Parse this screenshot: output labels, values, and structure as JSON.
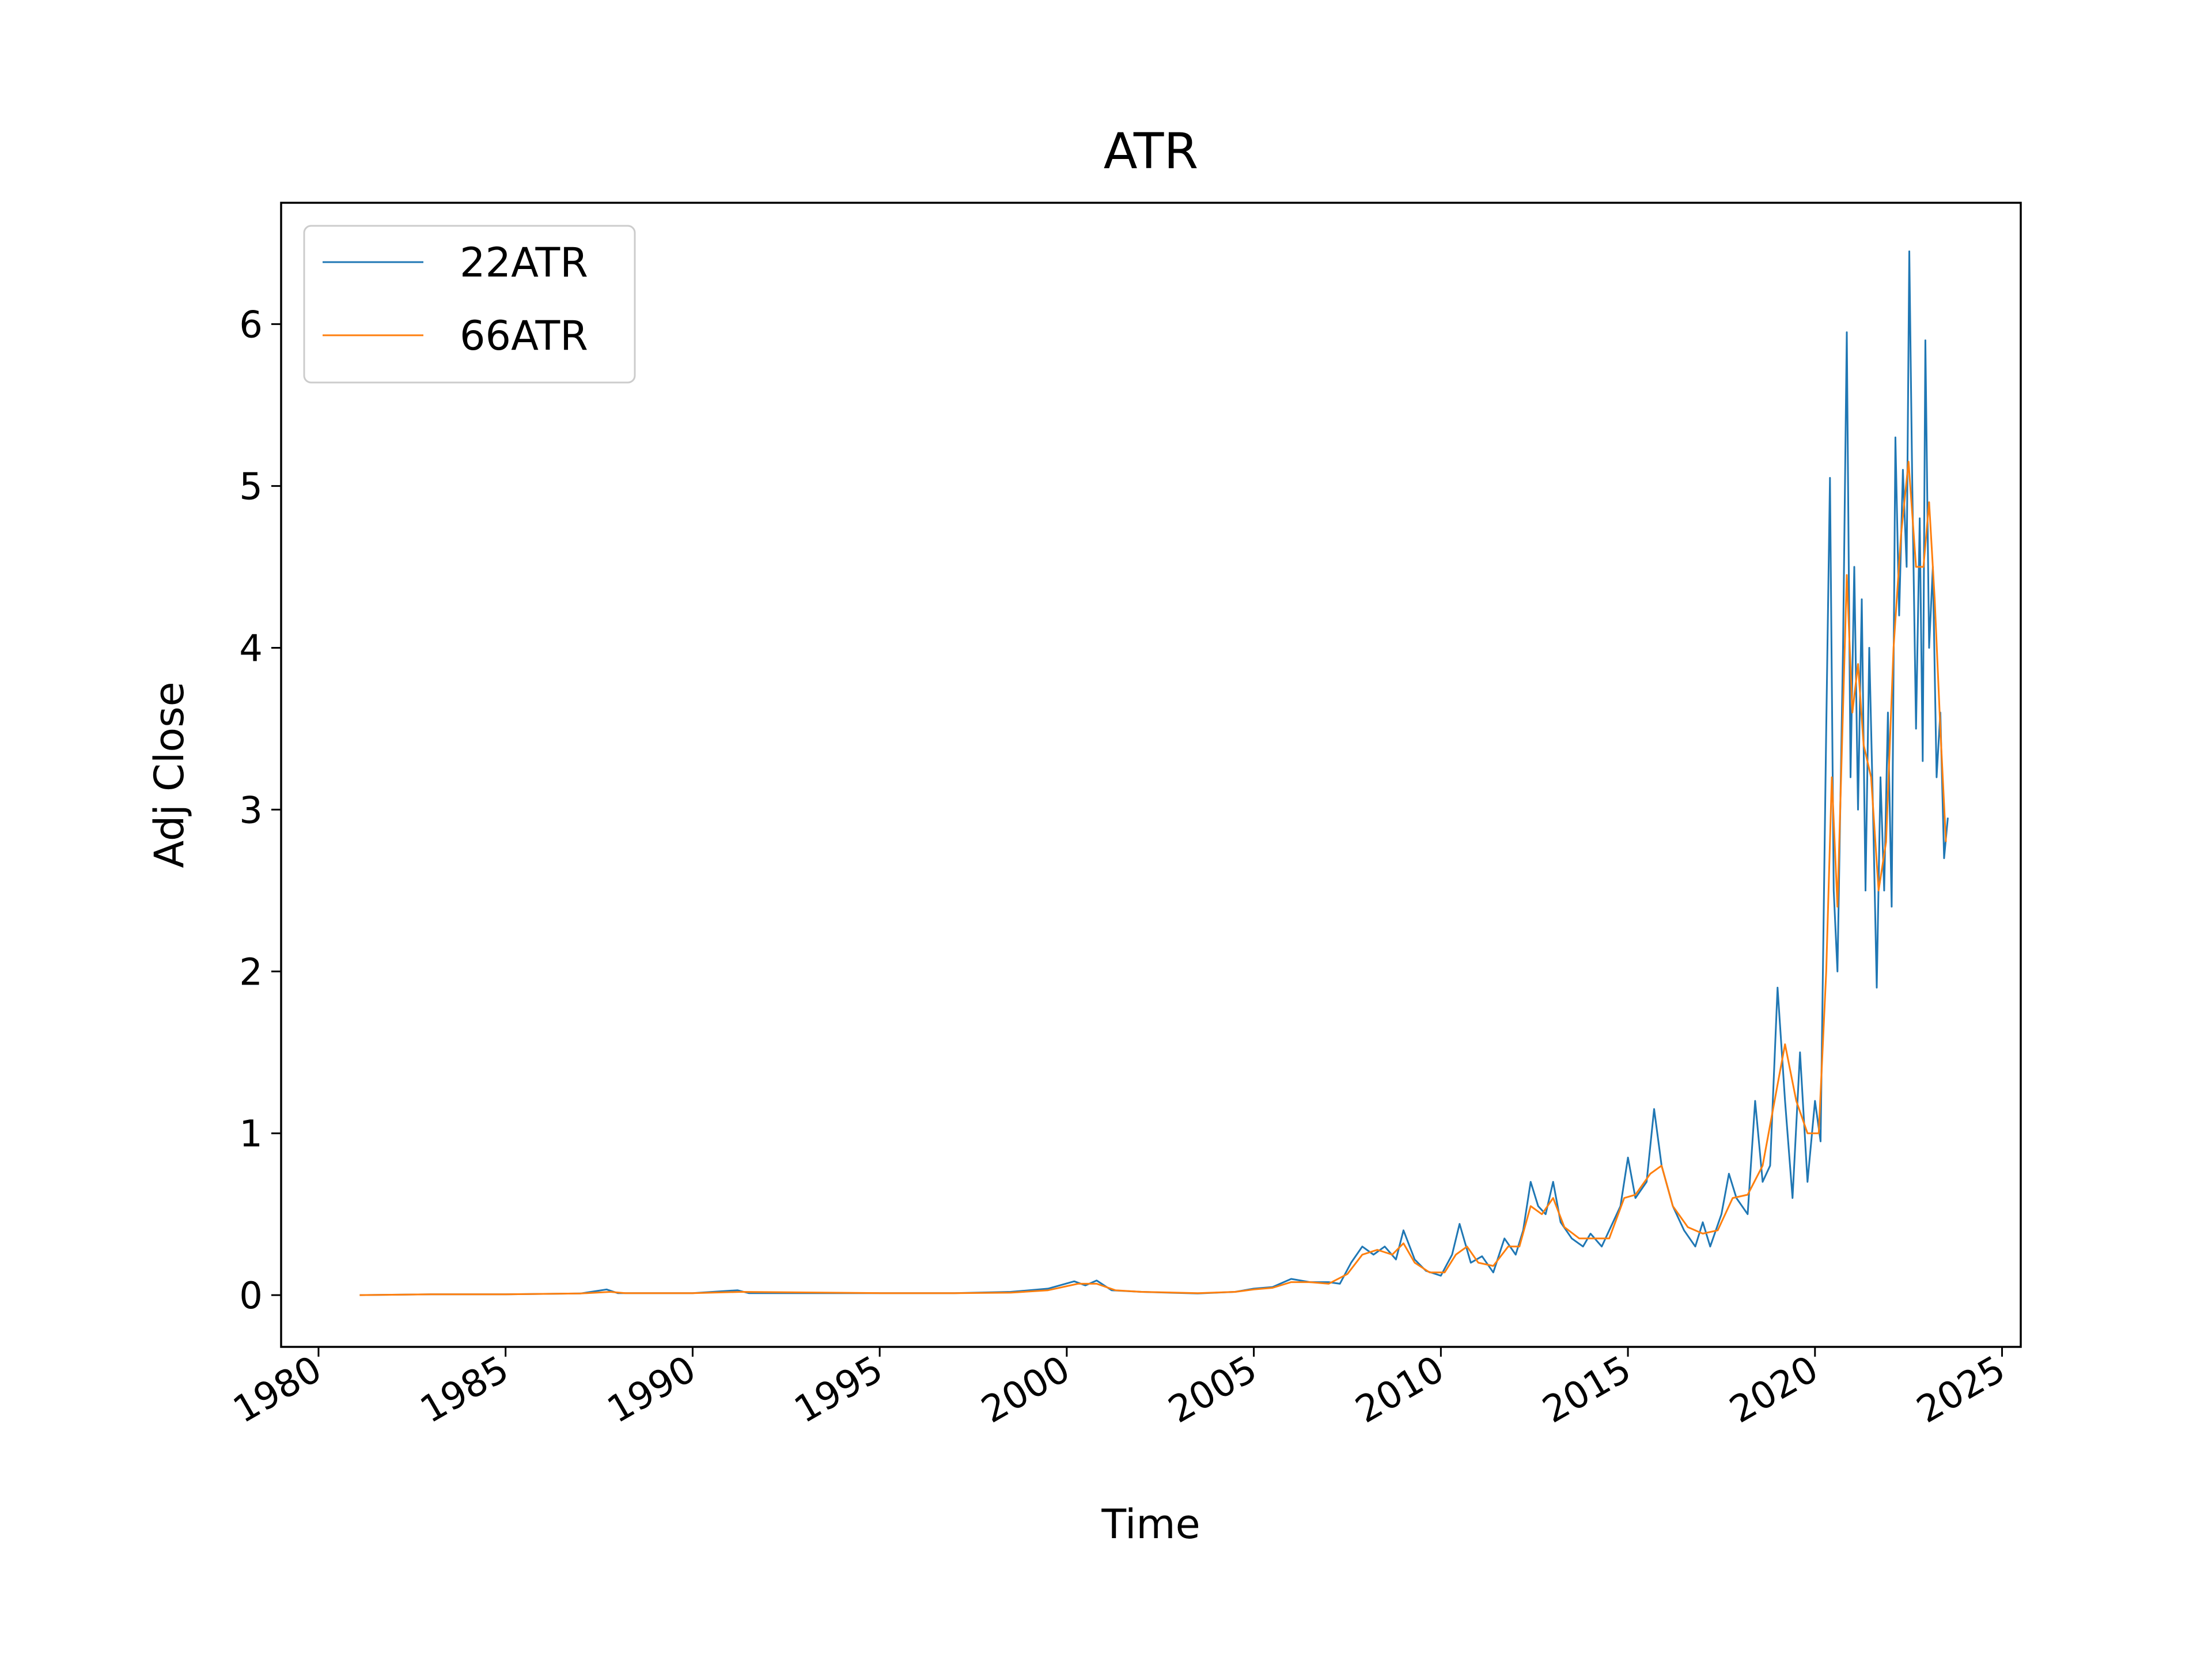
{
  "chart_data": {
    "type": "line",
    "title": "ATR",
    "xlabel": "Time",
    "ylabel": "Adj Close",
    "xlim": [
      1979.0,
      2025.5
    ],
    "ylim": [
      -0.32,
      6.75
    ],
    "x_ticks": [
      1980,
      1985,
      1990,
      1995,
      2000,
      2005,
      2010,
      2015,
      2020,
      2025
    ],
    "x_tick_labels": [
      "1980",
      "1985",
      "1990",
      "1995",
      "2000",
      "2005",
      "2010",
      "2015",
      "2020",
      "2025"
    ],
    "y_ticks": [
      0,
      1,
      2,
      3,
      4,
      5,
      6
    ],
    "y_tick_labels": [
      "0",
      "1",
      "2",
      "3",
      "4",
      "5",
      "6"
    ],
    "grid": false,
    "legend_position": "top-left",
    "series": [
      {
        "name": "22ATR",
        "color": "#1f77b4",
        "points": [
          [
            1981.1,
            0.0
          ],
          [
            1983.0,
            0.005
          ],
          [
            1985.0,
            0.005
          ],
          [
            1987.0,
            0.01
          ],
          [
            1987.7,
            0.035
          ],
          [
            1988.0,
            0.012
          ],
          [
            1990.0,
            0.012
          ],
          [
            1991.2,
            0.03
          ],
          [
            1991.5,
            0.012
          ],
          [
            1995.0,
            0.012
          ],
          [
            1997.0,
            0.012
          ],
          [
            1998.5,
            0.02
          ],
          [
            1999.5,
            0.04
          ],
          [
            2000.2,
            0.085
          ],
          [
            2000.5,
            0.06
          ],
          [
            2000.8,
            0.09
          ],
          [
            2001.2,
            0.03
          ],
          [
            2002.0,
            0.02
          ],
          [
            2003.5,
            0.01
          ],
          [
            2004.5,
            0.02
          ],
          [
            2005.0,
            0.04
          ],
          [
            2005.5,
            0.05
          ],
          [
            2006.0,
            0.1
          ],
          [
            2006.5,
            0.08
          ],
          [
            2007.0,
            0.08
          ],
          [
            2007.3,
            0.07
          ],
          [
            2007.6,
            0.2
          ],
          [
            2007.9,
            0.3
          ],
          [
            2008.2,
            0.25
          ],
          [
            2008.5,
            0.3
          ],
          [
            2008.8,
            0.22
          ],
          [
            2009.0,
            0.4
          ],
          [
            2009.3,
            0.22
          ],
          [
            2009.6,
            0.15
          ],
          [
            2010.0,
            0.12
          ],
          [
            2010.3,
            0.25
          ],
          [
            2010.5,
            0.44
          ],
          [
            2010.8,
            0.2
          ],
          [
            2011.1,
            0.24
          ],
          [
            2011.4,
            0.14
          ],
          [
            2011.7,
            0.35
          ],
          [
            2012.0,
            0.25
          ],
          [
            2012.2,
            0.4
          ],
          [
            2012.4,
            0.7
          ],
          [
            2012.6,
            0.55
          ],
          [
            2012.8,
            0.5
          ],
          [
            2013.0,
            0.7
          ],
          [
            2013.2,
            0.45
          ],
          [
            2013.5,
            0.35
          ],
          [
            2013.8,
            0.3
          ],
          [
            2014.0,
            0.38
          ],
          [
            2014.3,
            0.3
          ],
          [
            2014.6,
            0.45
          ],
          [
            2014.8,
            0.55
          ],
          [
            2015.0,
            0.85
          ],
          [
            2015.2,
            0.6
          ],
          [
            2015.5,
            0.7
          ],
          [
            2015.7,
            1.15
          ],
          [
            2015.9,
            0.8
          ],
          [
            2016.2,
            0.55
          ],
          [
            2016.5,
            0.4
          ],
          [
            2016.8,
            0.3
          ],
          [
            2017.0,
            0.45
          ],
          [
            2017.2,
            0.3
          ],
          [
            2017.5,
            0.5
          ],
          [
            2017.7,
            0.75
          ],
          [
            2017.9,
            0.6
          ],
          [
            2018.2,
            0.5
          ],
          [
            2018.4,
            1.2
          ],
          [
            2018.6,
            0.7
          ],
          [
            2018.8,
            0.8
          ],
          [
            2019.0,
            1.9
          ],
          [
            2019.2,
            1.2
          ],
          [
            2019.4,
            0.6
          ],
          [
            2019.6,
            1.5
          ],
          [
            2019.8,
            0.7
          ],
          [
            2020.0,
            1.2
          ],
          [
            2020.15,
            0.95
          ],
          [
            2020.3,
            3.5
          ],
          [
            2020.4,
            5.05
          ],
          [
            2020.5,
            2.5
          ],
          [
            2020.6,
            2.0
          ],
          [
            2020.75,
            4.0
          ],
          [
            2020.85,
            5.95
          ],
          [
            2020.95,
            3.2
          ],
          [
            2021.05,
            4.5
          ],
          [
            2021.15,
            3.0
          ],
          [
            2021.25,
            4.3
          ],
          [
            2021.35,
            2.5
          ],
          [
            2021.45,
            4.0
          ],
          [
            2021.55,
            3.0
          ],
          [
            2021.65,
            1.9
          ],
          [
            2021.75,
            3.2
          ],
          [
            2021.85,
            2.5
          ],
          [
            2021.95,
            3.6
          ],
          [
            2022.05,
            2.4
          ],
          [
            2022.15,
            5.3
          ],
          [
            2022.25,
            4.2
          ],
          [
            2022.35,
            5.1
          ],
          [
            2022.45,
            4.5
          ],
          [
            2022.52,
            6.45
          ],
          [
            2022.6,
            5.0
          ],
          [
            2022.7,
            3.5
          ],
          [
            2022.8,
            4.8
          ],
          [
            2022.88,
            3.3
          ],
          [
            2022.95,
            5.9
          ],
          [
            2023.05,
            4.0
          ],
          [
            2023.15,
            4.5
          ],
          [
            2023.25,
            3.2
          ],
          [
            2023.35,
            3.6
          ],
          [
            2023.45,
            2.7
          ],
          [
            2023.55,
            2.95
          ]
        ]
      },
      {
        "name": "66ATR",
        "color": "#ff7f0e",
        "points": [
          [
            1981.1,
            0.0
          ],
          [
            1983.0,
            0.005
          ],
          [
            1985.0,
            0.005
          ],
          [
            1987.0,
            0.01
          ],
          [
            1987.8,
            0.02
          ],
          [
            1988.2,
            0.012
          ],
          [
            1990.0,
            0.012
          ],
          [
            1991.3,
            0.02
          ],
          [
            1995.0,
            0.012
          ],
          [
            1997.0,
            0.012
          ],
          [
            1998.5,
            0.015
          ],
          [
            1999.5,
            0.03
          ],
          [
            2000.3,
            0.07
          ],
          [
            2000.8,
            0.07
          ],
          [
            2001.3,
            0.03
          ],
          [
            2002.0,
            0.02
          ],
          [
            2003.5,
            0.012
          ],
          [
            2004.5,
            0.02
          ],
          [
            2005.0,
            0.035
          ],
          [
            2005.5,
            0.045
          ],
          [
            2006.0,
            0.08
          ],
          [
            2006.5,
            0.08
          ],
          [
            2007.0,
            0.07
          ],
          [
            2007.5,
            0.13
          ],
          [
            2007.9,
            0.25
          ],
          [
            2008.3,
            0.28
          ],
          [
            2008.7,
            0.25
          ],
          [
            2009.0,
            0.32
          ],
          [
            2009.3,
            0.2
          ],
          [
            2009.7,
            0.14
          ],
          [
            2010.1,
            0.14
          ],
          [
            2010.4,
            0.25
          ],
          [
            2010.7,
            0.3
          ],
          [
            2011.0,
            0.2
          ],
          [
            2011.4,
            0.18
          ],
          [
            2011.8,
            0.3
          ],
          [
            2012.1,
            0.3
          ],
          [
            2012.4,
            0.55
          ],
          [
            2012.7,
            0.5
          ],
          [
            2013.0,
            0.6
          ],
          [
            2013.3,
            0.42
          ],
          [
            2013.7,
            0.35
          ],
          [
            2014.1,
            0.35
          ],
          [
            2014.5,
            0.35
          ],
          [
            2014.9,
            0.6
          ],
          [
            2015.2,
            0.62
          ],
          [
            2015.6,
            0.75
          ],
          [
            2015.9,
            0.8
          ],
          [
            2016.2,
            0.55
          ],
          [
            2016.6,
            0.42
          ],
          [
            2017.0,
            0.38
          ],
          [
            2017.4,
            0.4
          ],
          [
            2017.8,
            0.6
          ],
          [
            2018.2,
            0.62
          ],
          [
            2018.6,
            0.8
          ],
          [
            2019.0,
            1.3
          ],
          [
            2019.2,
            1.55
          ],
          [
            2019.5,
            1.2
          ],
          [
            2019.8,
            1.0
          ],
          [
            2020.1,
            1.0
          ],
          [
            2020.3,
            2.0
          ],
          [
            2020.45,
            3.2
          ],
          [
            2020.6,
            2.4
          ],
          [
            2020.85,
            4.45
          ],
          [
            2021.0,
            3.6
          ],
          [
            2021.15,
            3.9
          ],
          [
            2021.3,
            3.4
          ],
          [
            2021.5,
            3.2
          ],
          [
            2021.7,
            2.5
          ],
          [
            2021.9,
            2.8
          ],
          [
            2022.1,
            4.0
          ],
          [
            2022.3,
            4.7
          ],
          [
            2022.5,
            5.15
          ],
          [
            2022.7,
            4.5
          ],
          [
            2022.9,
            4.5
          ],
          [
            2023.05,
            4.9
          ],
          [
            2023.2,
            4.3
          ],
          [
            2023.35,
            3.5
          ],
          [
            2023.5,
            2.8
          ]
        ]
      }
    ]
  }
}
